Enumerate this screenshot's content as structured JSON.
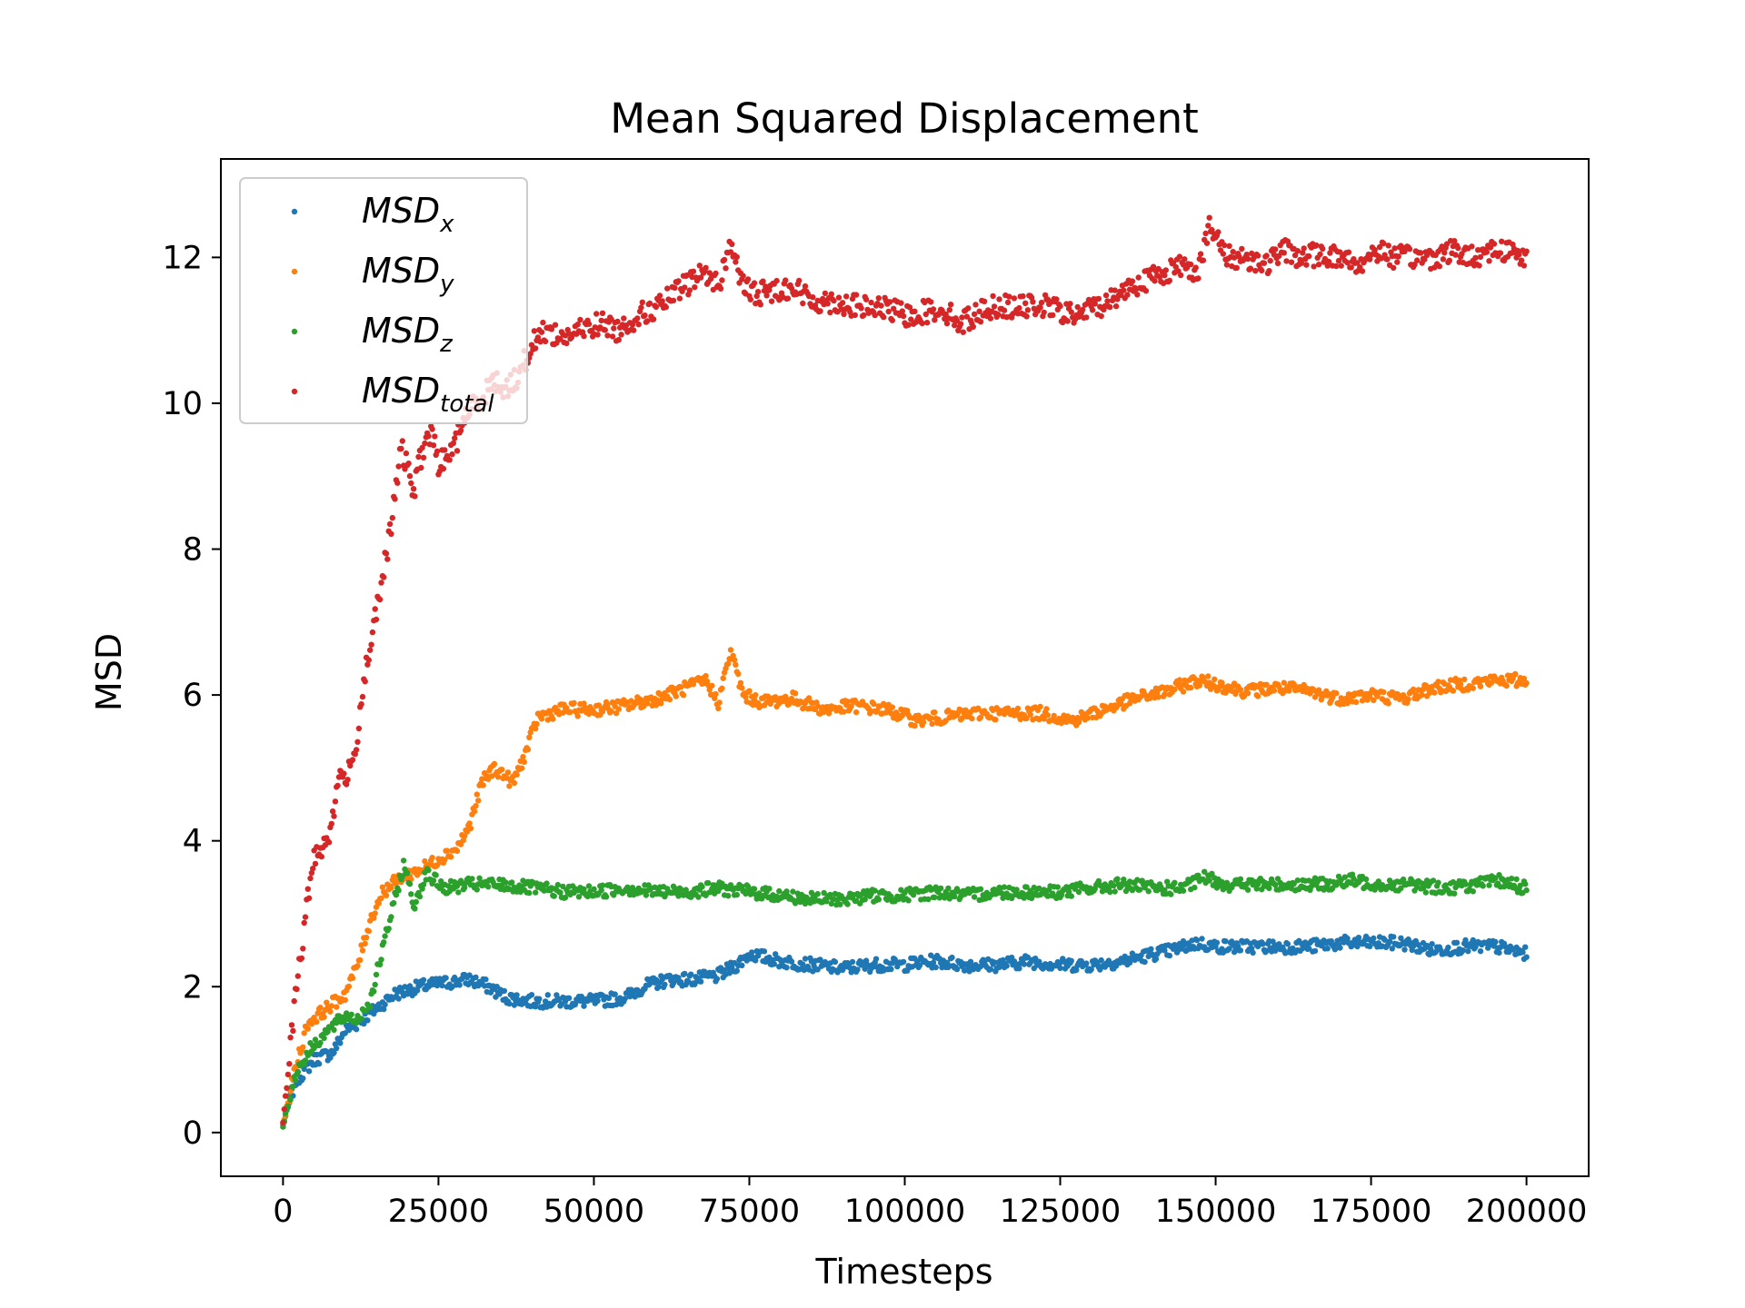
{
  "chart_data": {
    "type": "scatter",
    "title": "Mean Squared Displacement",
    "xlabel": "Timesteps",
    "ylabel": "MSD",
    "xlim": [
      -10000,
      210000
    ],
    "ylim": [
      -0.6,
      13.35
    ],
    "xticks": [
      0,
      25000,
      50000,
      75000,
      100000,
      125000,
      150000,
      175000,
      200000
    ],
    "xtick_labels": [
      "0",
      "25000",
      "50000",
      "75000",
      "100000",
      "125000",
      "150000",
      "175000",
      "200000"
    ],
    "yticks": [
      0,
      2,
      4,
      6,
      8,
      10,
      12
    ],
    "ytick_labels": [
      "0",
      "2",
      "4",
      "6",
      "8",
      "10",
      "12"
    ],
    "grid": false,
    "legend_position": "top-left",
    "series": [
      {
        "name": "MSD",
        "subscript": "x",
        "color": "#1f77b4",
        "x": [
          0,
          2000,
          5000,
          8000,
          10000,
          12000,
          15000,
          18000,
          22000,
          26000,
          30000,
          33000,
          36000,
          40000,
          45000,
          50000,
          55000,
          58000,
          62000,
          66000,
          70000,
          73000,
          75000,
          80000,
          85000,
          90000,
          95000,
          100000,
          105000,
          110000,
          115000,
          120000,
          125000,
          130000,
          135000,
          140000,
          143000,
          147000,
          150000,
          155000,
          160000,
          165000,
          170000,
          175000,
          180000,
          185000,
          190000,
          195000,
          200000
        ],
        "y": [
          0.1,
          0.7,
          1.0,
          1.1,
          1.4,
          1.5,
          1.7,
          1.9,
          2.0,
          2.05,
          2.1,
          2.0,
          1.85,
          1.8,
          1.8,
          1.8,
          1.85,
          2.0,
          2.1,
          2.1,
          2.15,
          2.3,
          2.45,
          2.35,
          2.3,
          2.25,
          2.3,
          2.3,
          2.35,
          2.3,
          2.3,
          2.35,
          2.3,
          2.3,
          2.35,
          2.45,
          2.5,
          2.6,
          2.55,
          2.55,
          2.55,
          2.55,
          2.6,
          2.6,
          2.6,
          2.5,
          2.55,
          2.55,
          2.45
        ]
      },
      {
        "name": "MSD",
        "subscript": "y",
        "color": "#ff7f0e",
        "x": [
          0,
          2000,
          4000,
          7000,
          10000,
          12000,
          14000,
          16000,
          19000,
          22000,
          25000,
          28000,
          30000,
          32000,
          34000,
          37000,
          39000,
          41000,
          45000,
          50000,
          55000,
          60000,
          65000,
          68000,
          70000,
          72000,
          74000,
          77000,
          82000,
          87000,
          92000,
          97000,
          102000,
          107000,
          112000,
          117000,
          122000,
          127000,
          132000,
          137000,
          142000,
          147000,
          150000,
          155000,
          160000,
          165000,
          170000,
          175000,
          180000,
          185000,
          190000,
          195000,
          200000
        ],
        "y": [
          0.1,
          0.9,
          1.5,
          1.7,
          1.9,
          2.3,
          2.9,
          3.3,
          3.5,
          3.6,
          3.75,
          3.9,
          4.2,
          4.8,
          5.0,
          4.8,
          5.2,
          5.7,
          5.8,
          5.8,
          5.85,
          5.95,
          6.1,
          6.2,
          5.9,
          6.6,
          6.0,
          5.9,
          5.95,
          5.8,
          5.85,
          5.8,
          5.65,
          5.7,
          5.75,
          5.75,
          5.75,
          5.65,
          5.8,
          5.95,
          6.05,
          6.2,
          6.15,
          6.05,
          6.1,
          6.05,
          5.95,
          6.0,
          5.95,
          6.1,
          6.15,
          6.2,
          6.2
        ]
      },
      {
        "name": "MSD",
        "subscript": "z",
        "color": "#2ca02c",
        "x": [
          0,
          2000,
          4000,
          6000,
          8000,
          10000,
          12000,
          14000,
          16000,
          18000,
          19500,
          21000,
          23000,
          26000,
          30000,
          35000,
          40000,
          45000,
          50000,
          55000,
          60000,
          65000,
          70000,
          75000,
          80000,
          85000,
          90000,
          95000,
          100000,
          105000,
          110000,
          115000,
          120000,
          125000,
          130000,
          135000,
          140000,
          145000,
          148000,
          152000,
          157000,
          162000,
          167000,
          172000,
          177000,
          182000,
          187000,
          192000,
          196000,
          200000
        ],
        "y": [
          0.1,
          0.8,
          1.1,
          1.3,
          1.45,
          1.6,
          1.55,
          1.8,
          2.5,
          3.2,
          3.7,
          3.1,
          3.55,
          3.35,
          3.4,
          3.4,
          3.35,
          3.3,
          3.3,
          3.35,
          3.3,
          3.3,
          3.35,
          3.3,
          3.25,
          3.2,
          3.2,
          3.25,
          3.25,
          3.3,
          3.25,
          3.3,
          3.3,
          3.3,
          3.35,
          3.4,
          3.35,
          3.35,
          3.5,
          3.4,
          3.4,
          3.4,
          3.4,
          3.45,
          3.4,
          3.4,
          3.35,
          3.4,
          3.45,
          3.35
        ]
      },
      {
        "name": "MSD",
        "subscript": "total",
        "color": "#d62728",
        "x": [
          0,
          1000,
          2000,
          3000,
          4000,
          5000,
          6000,
          7000,
          8000,
          9000,
          10000,
          11000,
          12000,
          13000,
          14000,
          15000,
          16000,
          17000,
          18000,
          19000,
          20000,
          21000,
          22000,
          23000,
          24000,
          25000,
          26000,
          27000,
          28000,
          29000,
          30000,
          32000,
          34000,
          36000,
          38000,
          40000,
          42000,
          45000,
          48000,
          51000,
          54000,
          57000,
          60000,
          63000,
          66000,
          68000,
          70000,
          72000,
          74000,
          76000,
          79000,
          82000,
          85000,
          88000,
          91000,
          94000,
          97000,
          100000,
          103000,
          106000,
          109000,
          112000,
          115000,
          118000,
          121000,
          124000,
          127000,
          130000,
          133000,
          136000,
          139000,
          142000,
          145000,
          147000,
          149000,
          152000,
          155000,
          158000,
          161000,
          164000,
          167000,
          170000,
          173000,
          176000,
          179000,
          182000,
          185000,
          188000,
          191000,
          194000,
          197000,
          200000
        ],
        "y": [
          0.1,
          1.0,
          1.9,
          2.5,
          3.2,
          3.8,
          3.9,
          4.0,
          4.3,
          4.9,
          4.9,
          4.95,
          5.5,
          6.2,
          6.7,
          7.1,
          7.6,
          8.1,
          8.7,
          9.4,
          9.1,
          8.8,
          9.2,
          9.5,
          9.6,
          9.1,
          9.3,
          9.3,
          9.5,
          9.8,
          9.9,
          10.1,
          10.3,
          10.2,
          10.4,
          10.8,
          11.0,
          10.9,
          11.0,
          11.1,
          11.0,
          11.2,
          11.3,
          11.5,
          11.7,
          11.8,
          11.6,
          12.2,
          11.6,
          11.5,
          11.55,
          11.6,
          11.4,
          11.4,
          11.35,
          11.3,
          11.3,
          11.2,
          11.25,
          11.3,
          11.1,
          11.25,
          11.35,
          11.3,
          11.35,
          11.3,
          11.2,
          11.3,
          11.4,
          11.6,
          11.7,
          11.8,
          11.9,
          11.8,
          12.4,
          12.0,
          12.0,
          11.9,
          12.1,
          12.0,
          12.05,
          12.0,
          11.9,
          12.1,
          12.0,
          12.0,
          12.0,
          12.1,
          12.0,
          12.1,
          12.1,
          12.0
        ]
      }
    ]
  }
}
